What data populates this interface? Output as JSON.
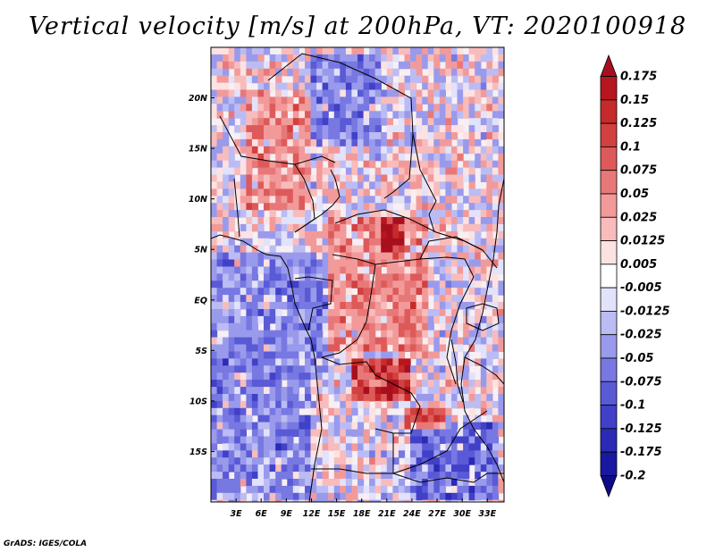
{
  "title": "Vertical velocity [m/s] at 200hPa, VT: 2020100918",
  "credit": "GrADS: IGES/COLA",
  "chart_data": {
    "type": "heatmap",
    "title": "Vertical velocity [m/s] at 200hPa, VT: 2020100918",
    "variable": "Vertical velocity",
    "units": "m/s",
    "level": "200hPa",
    "valid_time": "2020100918",
    "xlim": [
      0,
      35
    ],
    "ylim": [
      -20,
      25
    ],
    "x_ticks": [
      3,
      6,
      9,
      12,
      15,
      18,
      21,
      24,
      27,
      30,
      33
    ],
    "x_tick_labels": [
      "3E",
      "6E",
      "9E",
      "12E",
      "15E",
      "18E",
      "21E",
      "24E",
      "27E",
      "30E",
      "33E"
    ],
    "y_ticks": [
      20,
      15,
      10,
      5,
      0,
      -5,
      -10,
      -15
    ],
    "y_tick_labels": [
      "20N",
      "15N",
      "10N",
      "5N",
      "EQ",
      "5S",
      "10S",
      "15S"
    ],
    "colorbar": {
      "levels": [
        "0.175",
        "0.15",
        "0.125",
        "0.1",
        "0.075",
        "0.05",
        "0.025",
        "0.0125",
        "0.005",
        "-0.005",
        "-0.0125",
        "-0.025",
        "-0.05",
        "-0.075",
        "-0.1",
        "-0.125",
        "-0.175",
        "-0.2"
      ],
      "colors": [
        "#a80f1e",
        "#b8161e",
        "#c62a2a",
        "#d24040",
        "#de5a5a",
        "#e87878",
        "#f29a9a",
        "#f8bcbc",
        "#fde2e2",
        "#ffffff",
        "#e2e2fb",
        "#bcbcf4",
        "#9a9aec",
        "#7878e2",
        "#5a5ad6",
        "#4040c8",
        "#2a2ab6",
        "#1818a0",
        "#100a88"
      ]
    },
    "field_regions": [
      {
        "lon": [
          4,
          12
        ],
        "lat": [
          9,
          21
        ],
        "sign": "positive",
        "magnitude": 0.05
      },
      {
        "lon": [
          12,
          20
        ],
        "lat": [
          15,
          24
        ],
        "sign": "negative",
        "magnitude": 0.05
      },
      {
        "lon": [
          22,
          34
        ],
        "lat": [
          12,
          24
        ],
        "sign": "mixed",
        "magnitude": 0.03
      },
      {
        "lon": [
          0,
          14
        ],
        "lat": [
          -8,
          5
        ],
        "sign": "negative",
        "magnitude": 0.05
      },
      {
        "lon": [
          14,
          26
        ],
        "lat": [
          -5,
          8
        ],
        "sign": "positive",
        "magnitude": 0.05
      },
      {
        "lon": [
          20,
          23
        ],
        "lat": [
          5,
          8
        ],
        "sign": "positive",
        "magnitude": 0.15
      },
      {
        "lon": [
          17,
          24
        ],
        "lat": [
          -10,
          -6
        ],
        "sign": "positive",
        "magnitude": 0.125
      },
      {
        "lon": [
          23,
          28
        ],
        "lat": [
          -13,
          -11
        ],
        "sign": "positive",
        "magnitude": 0.1
      },
      {
        "lon": [
          0,
          12
        ],
        "lat": [
          -20,
          -8
        ],
        "sign": "negative",
        "magnitude": 0.05
      },
      {
        "lon": [
          14,
          22
        ],
        "lat": [
          -20,
          -10
        ],
        "sign": "mixed",
        "magnitude": 0.03
      },
      {
        "lon": [
          24,
          34
        ],
        "lat": [
          -20,
          -12
        ],
        "sign": "negative",
        "magnitude": 0.075
      }
    ]
  }
}
